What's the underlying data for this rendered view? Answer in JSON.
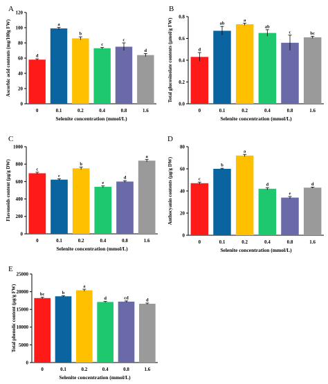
{
  "chart_data": [
    {
      "type": "bar",
      "panel_label": "A",
      "categories": [
        "0",
        "0.1",
        "0.2",
        "0.4",
        "0.8",
        "1.6"
      ],
      "values": [
        58,
        99,
        86,
        73,
        75,
        64
      ],
      "errors": [
        1,
        1.5,
        2,
        1,
        5,
        2
      ],
      "letters": [
        "d",
        "a",
        "b",
        "c",
        "c",
        "d"
      ],
      "xlabel": "Selenite concentration (mmol/L)",
      "ylabel": "Ascorbic acid contents (mg/100g FW)",
      "ylim": [
        0,
        120
      ],
      "yticks": [
        0,
        20,
        40,
        60,
        80,
        100,
        120
      ]
    },
    {
      "type": "bar",
      "panel_label": "B",
      "categories": [
        "0",
        "0.1",
        "0.2",
        "0.4",
        "0.8",
        "1.6"
      ],
      "values": [
        0.43,
        0.67,
        0.73,
        0.65,
        0.56,
        0.61
      ],
      "errors": [
        0.04,
        0.04,
        0.01,
        0.03,
        0.07,
        0.01
      ],
      "letters": [
        "d",
        "ab",
        "a",
        "ab",
        "c",
        "bc"
      ],
      "xlabel": "Selenite concentration (mmol/L)",
      "ylabel": "Total glucosinolate contents (μmol/g FW)",
      "ylim": [
        0,
        0.8
      ],
      "yticks": [
        0,
        0.2,
        0.4,
        0.6,
        0.8
      ],
      "ytick_labels": [
        "0.0",
        "0.2",
        "0.4",
        "0.6",
        "0.8"
      ]
    },
    {
      "type": "bar",
      "panel_label": "C",
      "categories": [
        "0",
        "0.1",
        "0.2",
        "0.4",
        "0.8",
        "1.6"
      ],
      "values": [
        695,
        622,
        752,
        540,
        600,
        840
      ],
      "errors": [
        12,
        10,
        15,
        10,
        10,
        15
      ],
      "letters": [
        "c",
        "c",
        "b",
        "e",
        "d",
        "a"
      ],
      "xlabel": "Selenite concentration (mmol/L)",
      "ylabel": "Flavonoids content (μg/g DW)",
      "ylim": [
        0,
        1000
      ],
      "yticks": [
        0,
        200,
        400,
        600,
        800,
        1000
      ]
    },
    {
      "type": "bar",
      "panel_label": "D",
      "categories": [
        "0",
        "0.1",
        "0.2",
        "0.4",
        "0.8",
        "1.6"
      ],
      "values": [
        47,
        60,
        72,
        42,
        34,
        43
      ],
      "errors": [
        1,
        0.5,
        1,
        1,
        1,
        0.5
      ],
      "letters": [
        "c",
        "b",
        "a",
        "d",
        "e",
        "d"
      ],
      "xlabel": "Selenite concentration (mmol/L)",
      "ylabel": "Anthocyanin contents (μg/g DW)",
      "ylim": [
        0,
        80
      ],
      "yticks": [
        0,
        20,
        40,
        60,
        80
      ]
    },
    {
      "type": "bar",
      "panel_label": "E",
      "categories": [
        "0",
        "0.1",
        "0.2",
        "0.4",
        "0.8",
        "1.6"
      ],
      "values": [
        18200,
        18700,
        20400,
        17100,
        17200,
        16600
      ],
      "errors": [
        250,
        150,
        300,
        150,
        200,
        200
      ],
      "letters": [
        "bc",
        "b",
        "a",
        "d",
        "cd",
        "d"
      ],
      "xlabel": "Selenite concentration (mmol/L)",
      "ylabel": "Total phenolic content (μg/g FW)",
      "ylim": [
        0,
        25000
      ],
      "yticks": [
        0,
        5000,
        10000,
        15000,
        20000,
        25000
      ]
    }
  ],
  "colors": {
    "bars": [
      "#ff1a1a",
      "#0a64a0",
      "#ffc000",
      "#1ec86e",
      "#6a6aa8",
      "#9a9a9a"
    ],
    "axis": "#000000"
  }
}
